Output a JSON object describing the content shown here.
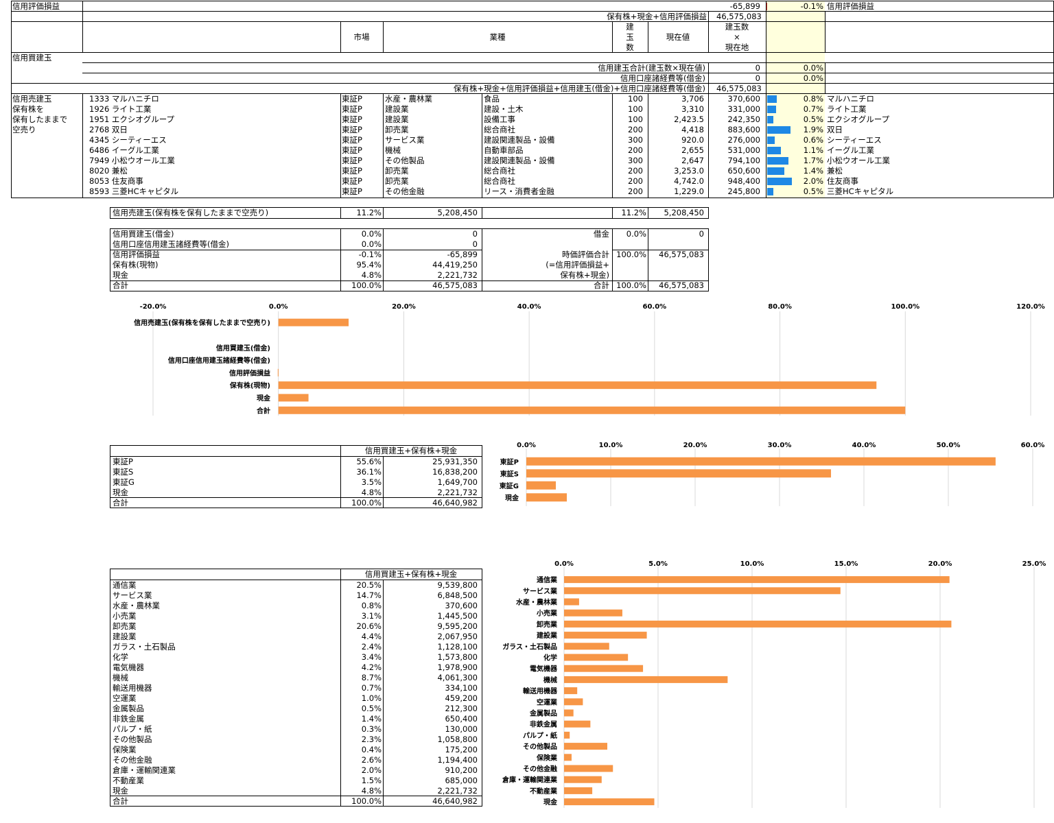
{
  "top": {
    "eval_label": "信用評価損益",
    "eval_value": "-65,899",
    "eval_pct": "-0.1%",
    "eval_label_right": "信用評価損益",
    "sum_label": "保有株+現金+信用評価損益",
    "sum_value": "46,575,083",
    "hdr_market": "市場",
    "hdr_industry": "業種",
    "hdr_qty": "建\n玉\n数",
    "hdr_price": "現在値",
    "hdr_value": "建玉数\n×\n現在地",
    "buy_label": "信用買建玉",
    "buy_total_label": "信用建玉合計(建玉数×現在値)",
    "buy_total_value": "0",
    "buy_total_pct": "0.0%",
    "buy_cost_label": "信用口座諸経費等(借金)",
    "buy_cost_value": "0",
    "buy_cost_pct": "0.0%",
    "grand_label": "保有株+現金+信用評価損益+信用建玉(借金)+信用口座諸経費等(借金)",
    "grand_value": "46,575,083",
    "sell_label_1": "信用売建玉",
    "sell_label_2": "保有株を",
    "sell_label_3": "保有したままで",
    "sell_label_4": "空売り"
  },
  "positions": [
    {
      "code": "1333 マルハニチロ",
      "market": "東証P",
      "ind1": "水産・農林業",
      "ind2": "食品",
      "qty": "100",
      "price": "3,706",
      "value": "370,600",
      "pct": "0.8%",
      "name": "マルハニチロ",
      "frac": 0.8
    },
    {
      "code": "1926 ライト工業",
      "market": "東証P",
      "ind1": "建設業",
      "ind2": "建設・土木",
      "qty": "100",
      "price": "3,310",
      "value": "331,000",
      "pct": "0.7%",
      "name": "ライト工業",
      "frac": 0.7
    },
    {
      "code": "1951 エクシオグループ",
      "market": "東証P",
      "ind1": "建設業",
      "ind2": "設備工事",
      "qty": "100",
      "price": "2,423.5",
      "value": "242,350",
      "pct": "0.5%",
      "name": "エクシオグループ",
      "frac": 0.5
    },
    {
      "code": "2768 双日",
      "market": "東証P",
      "ind1": "卸売業",
      "ind2": "総合商社",
      "qty": "200",
      "price": "4,418",
      "value": "883,600",
      "pct": "1.9%",
      "name": "双日",
      "frac": 1.9
    },
    {
      "code": "4345 シーティーエス",
      "market": "東証P",
      "ind1": "サービス業",
      "ind2": "建設関連製品・設備",
      "qty": "300",
      "price": "920.0",
      "value": "276,000",
      "pct": "0.6%",
      "name": "シーティーエス",
      "frac": 0.6
    },
    {
      "code": "6486 イーグル工業",
      "market": "東証P",
      "ind1": "機械",
      "ind2": "自動車部品",
      "qty": "200",
      "price": "2,655",
      "value": "531,000",
      "pct": "1.1%",
      "name": "イーグル工業",
      "frac": 1.1
    },
    {
      "code": "7949 小松ウオール工業",
      "market": "東証P",
      "ind1": "その他製品",
      "ind2": "建設関連製品・設備",
      "qty": "300",
      "price": "2,647",
      "value": "794,100",
      "pct": "1.7%",
      "name": "小松ウオール工業",
      "frac": 1.7
    },
    {
      "code": "8020 兼松",
      "market": "東証P",
      "ind1": "卸売業",
      "ind2": "総合商社",
      "qty": "200",
      "price": "3,253.0",
      "value": "650,600",
      "pct": "1.4%",
      "name": "兼松",
      "frac": 1.4
    },
    {
      "code": "8053 住友商事",
      "market": "東証P",
      "ind1": "卸売業",
      "ind2": "総合商社",
      "qty": "200",
      "price": "4,742.0",
      "value": "948,400",
      "pct": "2.0%",
      "name": "住友商事",
      "frac": 2.0
    },
    {
      "code": "8593 三菱HCキャピタル",
      "market": "東証P",
      "ind1": "その他金融",
      "ind2": "リース・消費者金融",
      "qty": "200",
      "price": "1,229.0",
      "value": "245,800",
      "pct": "0.5%",
      "name": "三菱HCキャピタル",
      "frac": 0.5
    }
  ],
  "short_summary": {
    "label": "信用売建玉(保有株を保有したままで空売り)",
    "pct": "11.2%",
    "value": "5,208,450",
    "pct2": "11.2%",
    "value2": "5,208,450"
  },
  "summary": {
    "rows": [
      {
        "label": "信用買建玉(借金)",
        "pct": "0.0%",
        "value": "0"
      },
      {
        "label": "信用口座信用建玉諸経費等(借金)",
        "pct": "0.0%",
        "value": "0"
      },
      {
        "label": "信用評価損益",
        "pct": "-0.1%",
        "value": "-65,899"
      },
      {
        "label": "保有株(現物)",
        "pct": "95.4%",
        "value": "44,419,250"
      },
      {
        "label": "現金",
        "pct": "4.8%",
        "value": "2,221,732"
      },
      {
        "label": "合計",
        "pct": "100.0%",
        "value": "46,575,083"
      }
    ],
    "debt_label": "借金",
    "debt_pct": "0.0%",
    "debt_value": "0",
    "mv_label": "時価評価合計",
    "mv_sub1": "(=信用評価損益+",
    "mv_sub2": "保有株+現金)",
    "mv_pct": "100.0%",
    "mv_value": "46,575,083",
    "total_label": "合計",
    "total_pct": "100.0%",
    "total_value": "46,575,083"
  },
  "market_table": {
    "header": "信用買建玉+保有株+現金",
    "rows": [
      {
        "label": "東証P",
        "pct": "55.6%",
        "value": "25,931,350"
      },
      {
        "label": "東証S",
        "pct": "36.1%",
        "value": "16,838,200"
      },
      {
        "label": "東証G",
        "pct": "3.5%",
        "value": "1,649,700"
      },
      {
        "label": "現金",
        "pct": "4.8%",
        "value": "2,221,732"
      },
      {
        "label": "合計",
        "pct": "100.0%",
        "value": "46,640,982"
      }
    ]
  },
  "sector_table": {
    "header": "信用買建玉+保有株+現金",
    "rows": [
      {
        "label": "通信業",
        "pct": "20.5%",
        "value": "9,539,800"
      },
      {
        "label": "サービス業",
        "pct": "14.7%",
        "value": "6,848,500"
      },
      {
        "label": "水産・農林業",
        "pct": "0.8%",
        "value": "370,600"
      },
      {
        "label": "小売業",
        "pct": "3.1%",
        "value": "1,445,500"
      },
      {
        "label": "卸売業",
        "pct": "20.6%",
        "value": "9,595,200"
      },
      {
        "label": "建設業",
        "pct": "4.4%",
        "value": "2,067,950"
      },
      {
        "label": "ガラス・土石製品",
        "pct": "2.4%",
        "value": "1,128,100"
      },
      {
        "label": "化学",
        "pct": "3.4%",
        "value": "1,573,800"
      },
      {
        "label": "電気機器",
        "pct": "4.2%",
        "value": "1,978,900"
      },
      {
        "label": "機械",
        "pct": "8.7%",
        "value": "4,061,300"
      },
      {
        "label": "輸送用機器",
        "pct": "0.7%",
        "value": "334,100"
      },
      {
        "label": "空運業",
        "pct": "1.0%",
        "value": "459,200"
      },
      {
        "label": "金属製品",
        "pct": "0.5%",
        "value": "212,300"
      },
      {
        "label": "非鉄金属",
        "pct": "1.4%",
        "value": "650,400"
      },
      {
        "label": "パルプ・紙",
        "pct": "0.3%",
        "value": "130,000"
      },
      {
        "label": "その他製品",
        "pct": "2.3%",
        "value": "1,058,800"
      },
      {
        "label": "保険業",
        "pct": "0.4%",
        "value": "175,200"
      },
      {
        "label": "その他金融",
        "pct": "2.6%",
        "value": "1,194,400"
      },
      {
        "label": "倉庫・運輸関連業",
        "pct": "2.0%",
        "value": "910,200"
      },
      {
        "label": "不動産業",
        "pct": "1.5%",
        "value": "685,000"
      },
      {
        "label": "現金",
        "pct": "4.8%",
        "value": "2,221,732"
      },
      {
        "label": "合計",
        "pct": "100.0%",
        "value": "46,640,982"
      }
    ]
  },
  "chart_data": [
    {
      "type": "bar",
      "orientation": "horizontal",
      "categories": [
        "信用売建玉(保有株を保有したままで空売り)",
        "",
        "信用買建玉(借金)",
        "信用口座信用建玉諸経費等(借金)",
        "信用評価損益",
        "保有株(現物)",
        "現金",
        "合計"
      ],
      "values": [
        11.2,
        null,
        0.0,
        0.0,
        -0.1,
        95.4,
        4.8,
        100.0
      ],
      "xlim": [
        -20,
        120
      ],
      "ticks": [
        "-20.0%",
        "0.0%",
        "20.0%",
        "40.0%",
        "60.0%",
        "80.0%",
        "100.0%",
        "120.0%"
      ],
      "tick_values": [
        -20,
        0,
        20,
        40,
        60,
        80,
        100,
        120
      ],
      "color": "#f79646",
      "grid": true
    },
    {
      "type": "bar",
      "orientation": "horizontal",
      "categories": [
        "東証P",
        "東証S",
        "東証G",
        "現金"
      ],
      "values": [
        55.6,
        36.1,
        3.5,
        4.8
      ],
      "xlim": [
        0,
        60
      ],
      "ticks": [
        "0.0%",
        "10.0%",
        "20.0%",
        "30.0%",
        "40.0%",
        "50.0%",
        "60.0%"
      ],
      "tick_values": [
        0,
        10,
        20,
        30,
        40,
        50,
        60
      ],
      "color": "#f79646",
      "grid": true
    },
    {
      "type": "bar",
      "orientation": "horizontal",
      "categories": [
        "通信業",
        "サービス業",
        "水産・農林業",
        "小売業",
        "卸売業",
        "建設業",
        "ガラス・土石製品",
        "化学",
        "電気機器",
        "機械",
        "輸送用機器",
        "空運業",
        "金属製品",
        "非鉄金属",
        "パルプ・紙",
        "その他製品",
        "保険業",
        "その他金融",
        "倉庫・運輸関連業",
        "不動産業",
        "現金"
      ],
      "values": [
        20.5,
        14.7,
        0.8,
        3.1,
        20.6,
        4.4,
        2.4,
        3.4,
        4.2,
        8.7,
        0.7,
        1.0,
        0.5,
        1.4,
        0.3,
        2.3,
        0.4,
        2.6,
        2.0,
        1.5,
        4.8
      ],
      "xlim": [
        0,
        25
      ],
      "ticks": [
        "0.0%",
        "5.0%",
        "10.0%",
        "15.0%",
        "20.0%",
        "25.0%"
      ],
      "tick_values": [
        0,
        5,
        10,
        15,
        20,
        25
      ],
      "color": "#f79646",
      "grid": true
    }
  ]
}
